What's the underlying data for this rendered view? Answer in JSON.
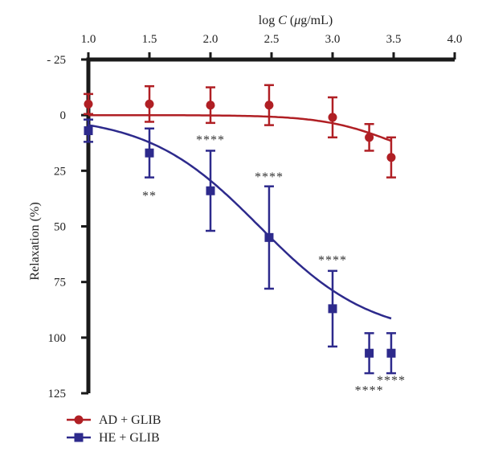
{
  "chart_data": {
    "type": "scatter",
    "title": "",
    "xlabel": "log C (μg/mL)",
    "xlabel_parts": {
      "prefix": "log ",
      "var": "C",
      "mid": " (",
      "mu": "μ",
      "unit": "g/mL)"
    },
    "ylabel": "Relaxation (%)",
    "x_axis_position": "top",
    "y_axis_inverted": true,
    "xlim": [
      1.0,
      4.0
    ],
    "ylim": [
      -25,
      125
    ],
    "x_ticks": [
      "1.0",
      "1.5",
      "2.0",
      "2.5",
      "3.0",
      "3.5",
      "4.0"
    ],
    "y_ticks": [
      "- 25",
      "0",
      "25",
      "50",
      "75",
      "100",
      "125"
    ],
    "grid": false,
    "legend_position": "bottom-left",
    "series": [
      {
        "name": "AD + GLIB",
        "color": "#b01f24",
        "marker": "circle",
        "x": [
          1.0,
          1.5,
          2.0,
          2.48,
          3.0,
          3.3,
          3.48
        ],
        "y": [
          -5,
          -5,
          -4.5,
          -4.5,
          1,
          10,
          19
        ],
        "err": [
          4.5,
          8,
          8,
          9,
          9,
          6,
          9
        ],
        "fit": {
          "bottom": 0,
          "top": 24,
          "log_ec50": 3.5,
          "hill": 1.5,
          "x_range": [
            1.0,
            3.48
          ]
        }
      },
      {
        "name": "HE + GLIB",
        "color": "#2d2a8c",
        "marker": "square",
        "x": [
          1.0,
          1.5,
          2.0,
          2.48,
          3.0,
          3.3,
          3.48
        ],
        "y": [
          7,
          17,
          34,
          55,
          87,
          107,
          107
        ],
        "err": [
          5,
          11,
          18,
          23,
          17,
          9,
          9
        ],
        "fit": {
          "bottom": 0,
          "top": 100,
          "log_ec50": 2.4,
          "hill": 0.95,
          "x_range": [
            1.0,
            3.48
          ]
        }
      }
    ],
    "annotations": [
      {
        "text": "**",
        "x": 1.5,
        "y": 38
      },
      {
        "text": "****",
        "x": 2.0,
        "y": 13
      },
      {
        "text": "****",
        "x": 2.48,
        "y": 29.5
      },
      {
        "text": "****",
        "x": 3.0,
        "y": 67
      },
      {
        "text": "****",
        "x": 3.3,
        "y": 125.5
      },
      {
        "text": "****",
        "x": 3.48,
        "y": 121
      }
    ]
  }
}
